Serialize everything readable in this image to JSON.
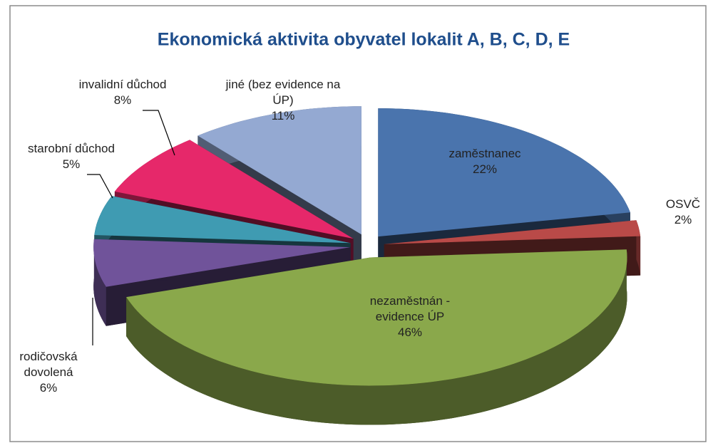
{
  "chart_data": {
    "type": "pie",
    "title": "Ekonomická aktivita obyvatel lokalit A, B, C, D, E",
    "categories": [
      "zaměstnanec",
      "OSVČ",
      "nezaměstnán - evidence ÚP",
      "rodičovská dovolená",
      "starobní důchod",
      "invalidní důchod",
      "jiné (bez evidence na ÚP)"
    ],
    "values": [
      22,
      2,
      46,
      6,
      5,
      8,
      11
    ],
    "value_labels": [
      "22%",
      "2%",
      "46%",
      "6%",
      "5%",
      "8%",
      "11%"
    ],
    "colors": [
      "#4a74ad",
      "#b94a48",
      "#8aa84b",
      "#70539a",
      "#3f9bb2",
      "#e6286a",
      "#94a9d2"
    ]
  }
}
